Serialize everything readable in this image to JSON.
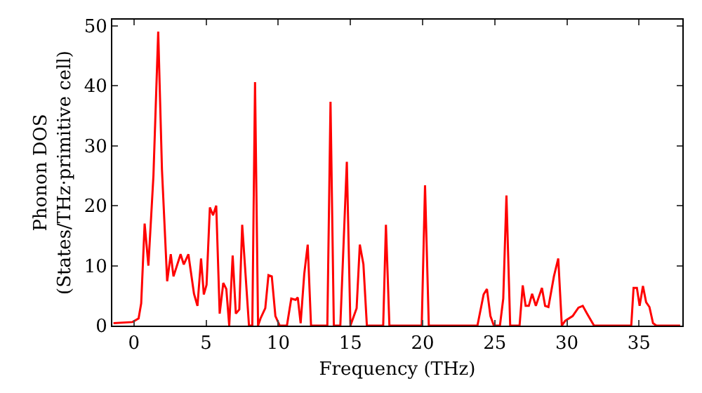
{
  "chart_data": {
    "type": "line",
    "xlabel": "Frequency (THz)",
    "ylabel": "Phonon DOS\n(States/THz·primitive cell)",
    "xlim": [
      -1.5,
      38
    ],
    "ylim": [
      0,
      51
    ],
    "xticks": [
      0,
      5,
      10,
      15,
      20,
      25,
      30,
      35
    ],
    "yticks": [
      0,
      10,
      20,
      30,
      40,
      50
    ],
    "grid": false,
    "marker": "none",
    "line_style": "solid",
    "series": [
      {
        "color": "#ff0000",
        "x": [
          -1.42,
          -0.1,
          0.32,
          0.5,
          0.74,
          1.0,
          1.35,
          1.68,
          1.94,
          2.3,
          2.55,
          2.74,
          3.23,
          3.45,
          3.77,
          4.16,
          4.4,
          4.65,
          4.84,
          5.03,
          5.26,
          5.48,
          5.7,
          5.94,
          6.19,
          6.4,
          6.6,
          6.84,
          7.06,
          7.3,
          7.5,
          7.97,
          8.2,
          8.39,
          8.6,
          8.77,
          9.1,
          9.32,
          9.55,
          9.8,
          10.1,
          10.6,
          10.9,
          11.2,
          11.35,
          11.55,
          11.8,
          12.04,
          12.27,
          13.4,
          13.62,
          13.85,
          14.3,
          14.75,
          15.0,
          15.43,
          15.65,
          15.9,
          16.14,
          17.27,
          17.46,
          17.7,
          19.94,
          20.17,
          20.43,
          23.8,
          24.23,
          24.46,
          24.7,
          24.94,
          25.36,
          25.59,
          25.81,
          26.07,
          26.72,
          26.94,
          27.14,
          27.36,
          27.59,
          27.85,
          28.27,
          28.49,
          28.72,
          29.1,
          29.4,
          29.65,
          29.88,
          30.4,
          30.8,
          31.1,
          31.4,
          31.88,
          34.46,
          34.62,
          34.85,
          35.04,
          35.27,
          35.49,
          35.72,
          35.97,
          36.2,
          37.85
        ],
        "values": [
          0.4,
          0.6,
          1.2,
          3.7,
          17,
          10,
          25,
          49,
          26,
          7.4,
          11.9,
          8.2,
          11.9,
          10.2,
          11.9,
          5.3,
          3.3,
          11.2,
          5.2,
          6.8,
          19.7,
          18.4,
          20,
          2,
          7.1,
          6.1,
          0,
          11.7,
          2,
          2.7,
          16.8,
          0,
          0,
          40.6,
          0,
          1.2,
          2.9,
          8.4,
          8.2,
          1.6,
          0,
          0,
          4.5,
          4.3,
          4.7,
          0.4,
          8.6,
          13.5,
          0,
          0,
          37.3,
          0,
          0,
          27.3,
          0,
          2.9,
          13.5,
          10.2,
          0,
          0,
          16.8,
          0,
          0,
          23.4,
          0,
          0,
          5.2,
          6.1,
          1.6,
          0,
          0,
          4.5,
          21.7,
          0,
          0,
          6.7,
          3.3,
          3.3,
          5.3,
          3.3,
          6.3,
          3.3,
          3.1,
          8.2,
          11.2,
          0,
          0.8,
          1.6,
          3.0,
          3.3,
          2,
          0,
          0,
          6.3,
          6.3,
          3.3,
          6.6,
          3.9,
          3.1,
          0.4,
          0,
          0
        ]
      }
    ]
  }
}
